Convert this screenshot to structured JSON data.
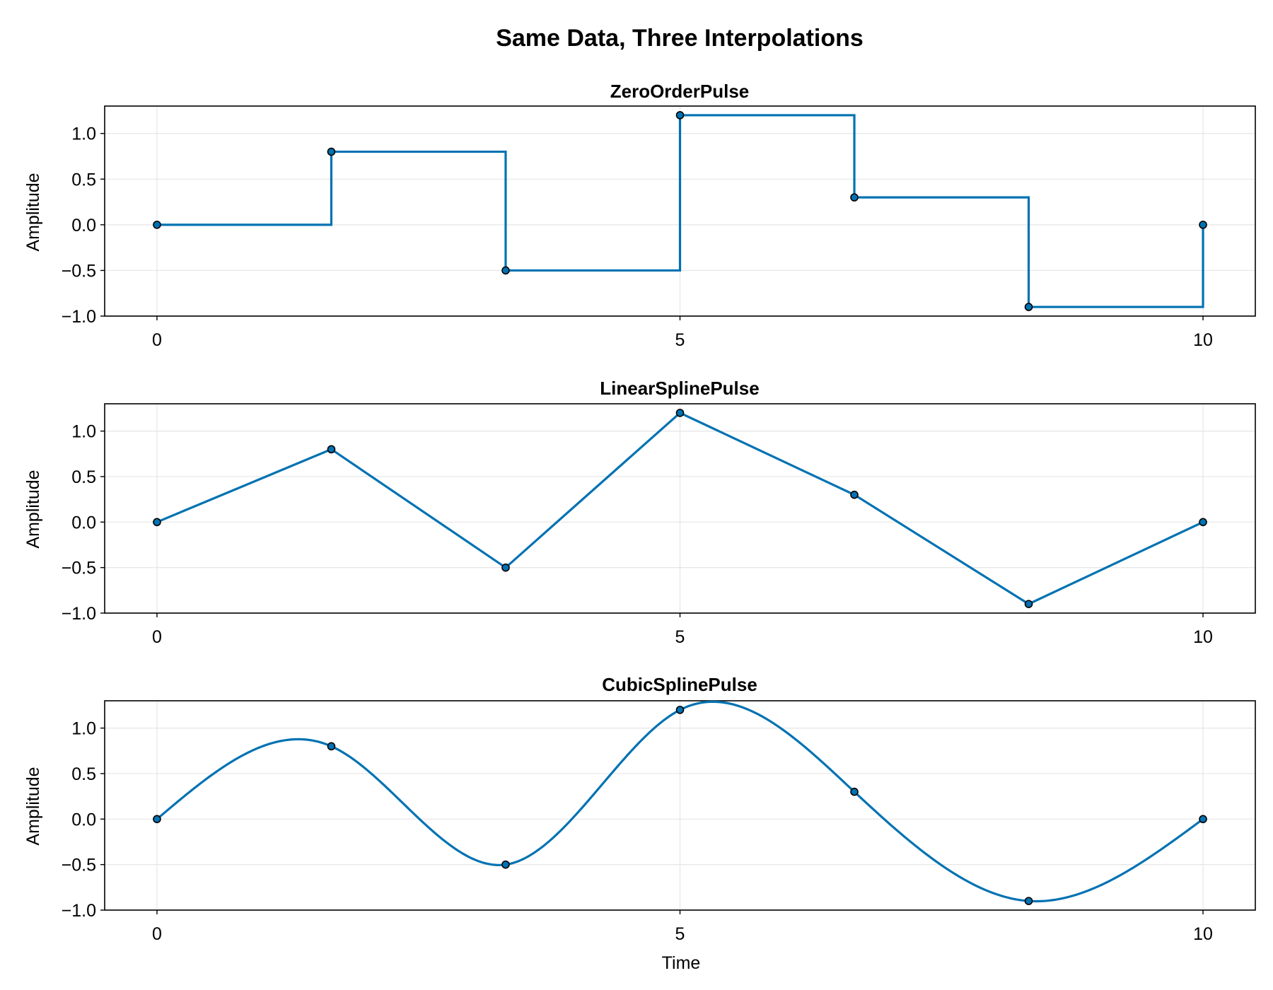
{
  "figure": {
    "title": "Same Data, Three Interpolations",
    "xlabel": "Time"
  },
  "colors": {
    "line": "#0072b2",
    "marker_fill": "#0072b2",
    "marker_edge": "#000000",
    "grid": "#e6e6e6",
    "axis": "#000000"
  },
  "chart_data": [
    {
      "type": "line",
      "interpolation": "step",
      "title": "ZeroOrderPulse",
      "xlabel": "",
      "ylabel": "Amplitude",
      "x": [
        0,
        1.6667,
        3.3333,
        5.0,
        6.6667,
        8.3333,
        10.0
      ],
      "values": [
        0.0,
        0.8,
        -0.5,
        1.2,
        0.3,
        -0.9,
        0.0
      ],
      "xlim": [
        -0.5,
        10.5
      ],
      "ylim": [
        -1.0,
        1.3
      ],
      "xticks": [
        0,
        5,
        10
      ],
      "xtick_labels": [
        "0",
        "5",
        "10"
      ],
      "yticks": [
        1.0,
        0.5,
        0.0,
        -0.5,
        -1.0
      ],
      "ytick_labels": [
        "1.0",
        "0.5",
        "0.0",
        "−0.5",
        "−1.0"
      ],
      "grid": true,
      "markers": true
    },
    {
      "type": "line",
      "interpolation": "linear",
      "title": "LinearSplinePulse",
      "xlabel": "",
      "ylabel": "Amplitude",
      "x": [
        0,
        1.6667,
        3.3333,
        5.0,
        6.6667,
        8.3333,
        10.0
      ],
      "values": [
        0.0,
        0.8,
        -0.5,
        1.2,
        0.3,
        -0.9,
        0.0
      ],
      "xlim": [
        -0.5,
        10.5
      ],
      "ylim": [
        -1.0,
        1.3
      ],
      "xticks": [
        0,
        5,
        10
      ],
      "xtick_labels": [
        "0",
        "5",
        "10"
      ],
      "yticks": [
        1.0,
        0.5,
        0.0,
        -0.5,
        -1.0
      ],
      "ytick_labels": [
        "1.0",
        "0.5",
        "0.0",
        "−0.5",
        "−1.0"
      ],
      "grid": true,
      "markers": true
    },
    {
      "type": "line",
      "interpolation": "cubic",
      "title": "CubicSplinePulse",
      "xlabel": "Time",
      "ylabel": "Amplitude",
      "x": [
        0,
        1.6667,
        3.3333,
        5.0,
        6.6667,
        8.3333,
        10.0
      ],
      "values": [
        0.0,
        0.8,
        -0.5,
        1.2,
        0.3,
        -0.9,
        0.0
      ],
      "xlim": [
        -0.5,
        10.5
      ],
      "ylim": [
        -1.0,
        1.3
      ],
      "xticks": [
        0,
        5,
        10
      ],
      "xtick_labels": [
        "0",
        "5",
        "10"
      ],
      "yticks": [
        1.0,
        0.5,
        0.0,
        -0.5,
        -1.0
      ],
      "ytick_labels": [
        "1.0",
        "0.5",
        "0.0",
        "−0.5",
        "−1.0"
      ],
      "grid": true,
      "markers": true
    }
  ]
}
